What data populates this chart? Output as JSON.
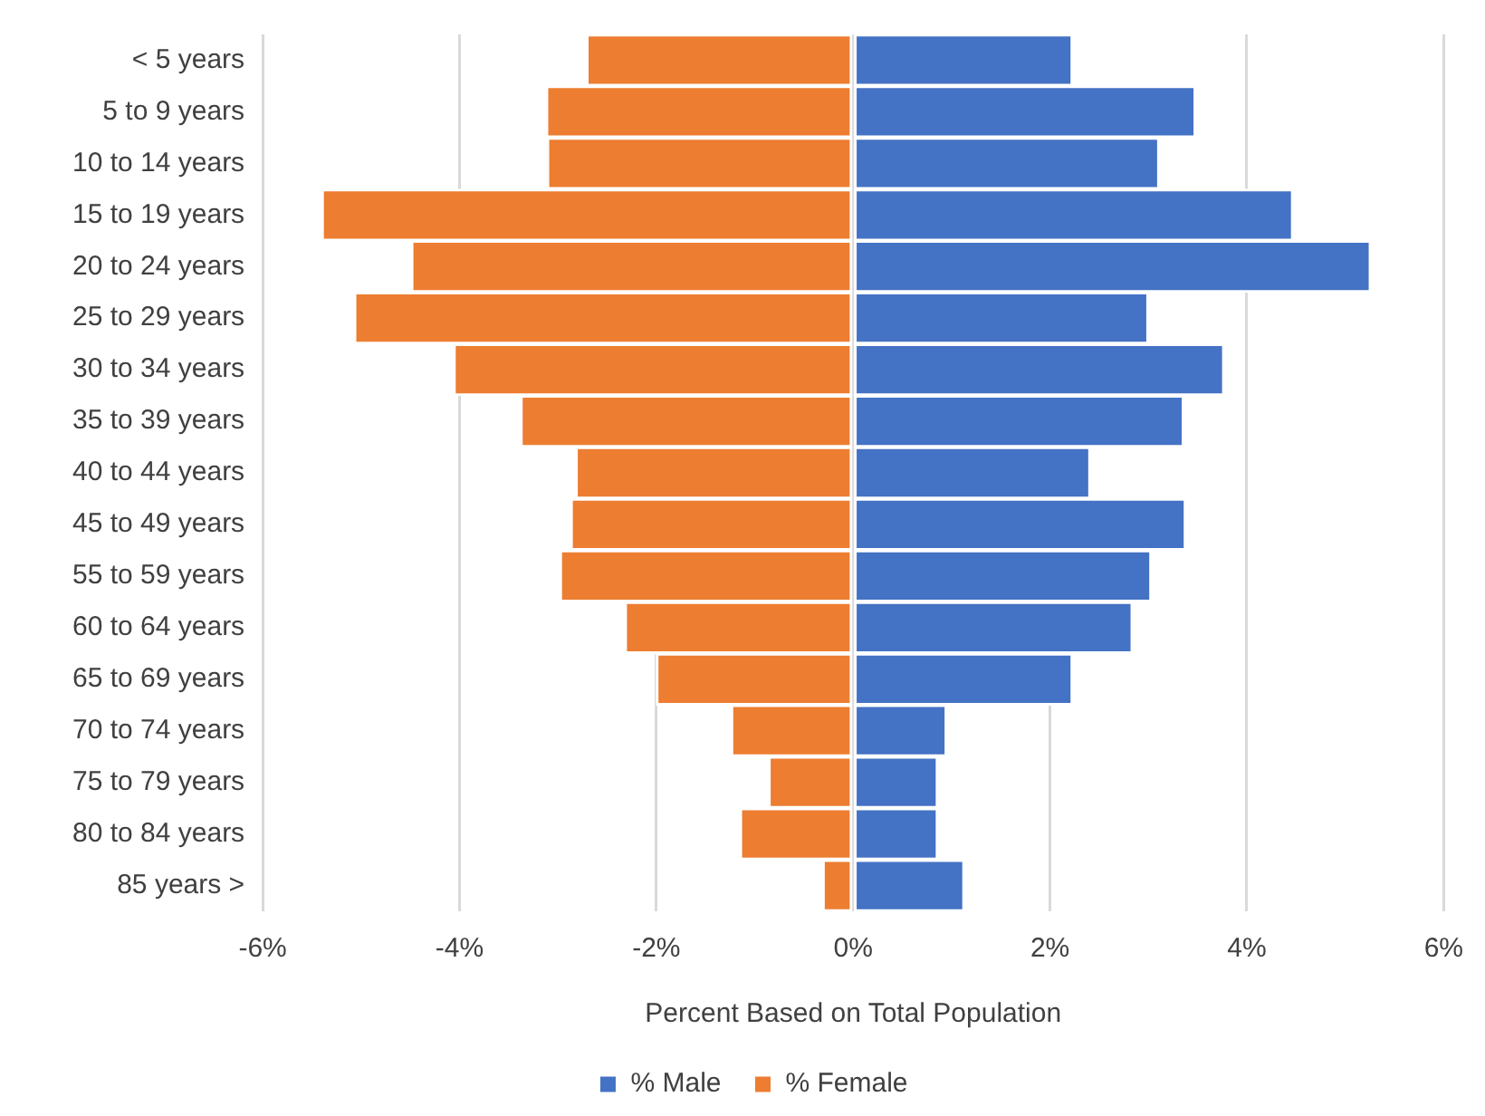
{
  "chart_data": {
    "type": "bar",
    "orientation": "horizontal",
    "stacked": true,
    "xlabel": "Percent Based on Total Population",
    "categories": [
      "< 5 years",
      "5 to 9 years",
      "10 to 14 years",
      "15 to 19 years",
      "20 to 24 years",
      "25 to 29 years",
      "30 to 34 years",
      "35 to 39 years",
      "40 to 44 years",
      "45 to 49 years",
      "55 to 59 years",
      "60 to 64 years",
      "65 to 69 years",
      "70 to 74 years",
      "75 to 79 years",
      "80 to 84 years",
      "85 years >"
    ],
    "series": [
      {
        "name": "% Male",
        "color": "#4472c4",
        "values": [
          2.23,
          3.48,
          3.11,
          4.47,
          5.26,
          3.0,
          3.77,
          3.36,
          2.41,
          3.38,
          3.03,
          2.84,
          2.23,
          0.95,
          0.86,
          0.86,
          1.13
        ]
      },
      {
        "name": "% Female",
        "color": "#ed7d31",
        "values": [
          -2.71,
          -3.12,
          -3.11,
          -5.4,
          -4.49,
          -5.07,
          -4.06,
          -3.38,
          -2.82,
          -2.87,
          -2.98,
          -2.32,
          -2.0,
          -1.24,
          -0.86,
          -1.15,
          -0.31
        ]
      }
    ],
    "xlim": [
      -6,
      6
    ],
    "xticks": [
      {
        "value": -6,
        "label": "-6%"
      },
      {
        "value": -4,
        "label": "-4%"
      },
      {
        "value": -2,
        "label": "-2%"
      },
      {
        "value": 0,
        "label": "0%"
      },
      {
        "value": 2,
        "label": "2%"
      },
      {
        "value": 4,
        "label": "4%"
      },
      {
        "value": 6,
        "label": "6%"
      }
    ],
    "grid": "x",
    "legend": "bottom"
  }
}
